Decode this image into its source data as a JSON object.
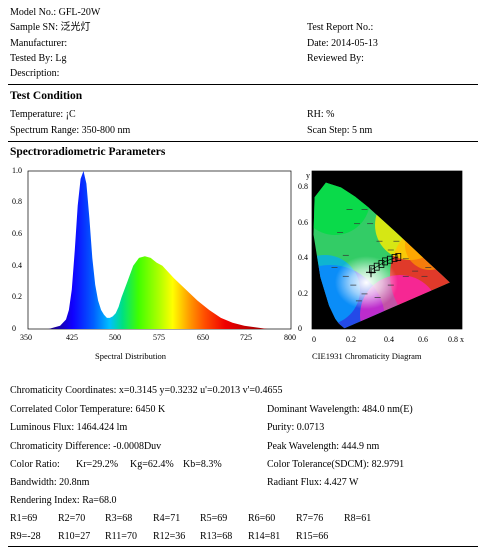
{
  "header": {
    "model_no": "Model No.: GFL-20W",
    "sample_sn": "Sample SN: 泛光灯",
    "manufacturer": "Manufacturer:",
    "tested_by": "Tested By: Lg",
    "description": "Description:",
    "test_report_no": "Test Report No.:",
    "date": "Date: 2014-05-13",
    "reviewed_by": "Reviewed By:"
  },
  "test_condition": {
    "title": "Test Condition",
    "temperature": "Temperature: ¡C",
    "rh": "RH: %",
    "spectrum_range": "Spectrum Range: 350-800 nm",
    "scan_step": "Scan Step: 5 nm"
  },
  "spectro": {
    "title": "Spectroradiometric Parameters",
    "spectrum_caption": "Spectral Distribution",
    "cie_caption": "CIE1931 Chromaticity Diagram",
    "cie_y_axis_label": "y"
  },
  "chart_data": [
    {
      "type": "area",
      "title": "Spectral Distribution",
      "x_ticks": [
        "350",
        "425",
        "500",
        "575",
        "650",
        "725",
        "800"
      ],
      "y_ticks": [
        "0",
        "0.2",
        "0.4",
        "0.6",
        "0.8",
        "1.0"
      ],
      "xlim": [
        350,
        800
      ],
      "ylim": [
        0,
        1.0
      ],
      "series": [
        {
          "x": [
            385,
            395,
            405,
            415,
            420,
            425,
            430,
            435,
            440,
            445,
            450,
            455,
            460,
            465,
            470,
            475,
            480,
            485,
            490,
            495,
            500,
            505,
            510,
            520,
            530,
            540,
            550,
            560,
            570,
            580,
            590,
            600,
            620,
            640,
            660,
            680,
            700,
            720,
            740,
            760
          ],
          "y": [
            0.0,
            0.01,
            0.02,
            0.06,
            0.12,
            0.25,
            0.5,
            0.78,
            0.95,
            1.0,
            0.92,
            0.7,
            0.45,
            0.28,
            0.18,
            0.12,
            0.09,
            0.07,
            0.07,
            0.08,
            0.1,
            0.14,
            0.2,
            0.3,
            0.4,
            0.45,
            0.46,
            0.45,
            0.42,
            0.4,
            0.36,
            0.32,
            0.25,
            0.18,
            0.12,
            0.07,
            0.04,
            0.02,
            0.01,
            0.0
          ]
        }
      ]
    },
    {
      "type": "scatter",
      "title": "CIE1931 Chromaticity Diagram",
      "x_ticks": [
        "0",
        "0.2",
        "0.4",
        "0.6",
        "0.8 x"
      ],
      "y_ticks": [
        "0",
        "0.2",
        "0.4",
        "0.6",
        "0.8"
      ],
      "xlim": [
        0,
        0.8
      ],
      "ylim": [
        0,
        0.9
      ],
      "measured_point": {
        "x": 0.3145,
        "y": 0.3232
      },
      "planckian_boxes": [
        {
          "x": 0.32,
          "y": 0.34
        },
        {
          "x": 0.345,
          "y": 0.355
        },
        {
          "x": 0.37,
          "y": 0.37
        },
        {
          "x": 0.39,
          "y": 0.385
        },
        {
          "x": 0.415,
          "y": 0.395
        },
        {
          "x": 0.44,
          "y": 0.405
        },
        {
          "x": 0.46,
          "y": 0.41
        }
      ]
    }
  ],
  "results": {
    "chromaticity": "Chromaticity Coordinates: x=0.3145 y=0.3232 u'=0.2013 v'=0.4655",
    "cct": "Correlated Color Temperature: 6450 K",
    "dominant_wavelength": "Dominant Wavelength: 484.0 nm(E)",
    "luminous_flux": "Luminous Flux: 1464.424 lm",
    "purity": "Purity: 0.0713",
    "chroma_diff": "Chromaticity Difference: -0.0008Duv",
    "peak_wavelength": "Peak Wavelength: 444.9 nm",
    "color_ratio_label": "Color Ratio:",
    "kr": "Kr=29.2%",
    "kg": "Kg=62.4%",
    "kb": "Kb=8.3%",
    "color_tolerance": "Color Tolerance(SDCM): 82.9791",
    "bandwidth": "Bandwidth: 20.8nm",
    "radiant_flux": "Radiant Flux: 4.427 W",
    "rendering_index": "Rendering Index: Ra=68.0"
  },
  "r_values": [
    [
      "R1=69",
      "R2=70",
      "R3=68",
      "R4=71",
      "R5=69",
      "R6=60",
      "R7=76",
      "R8=61"
    ],
    [
      "R9=-28",
      "R10=27",
      "R11=70",
      "R12=36",
      "R13=68",
      "R14=81",
      "R15=66"
    ]
  ]
}
